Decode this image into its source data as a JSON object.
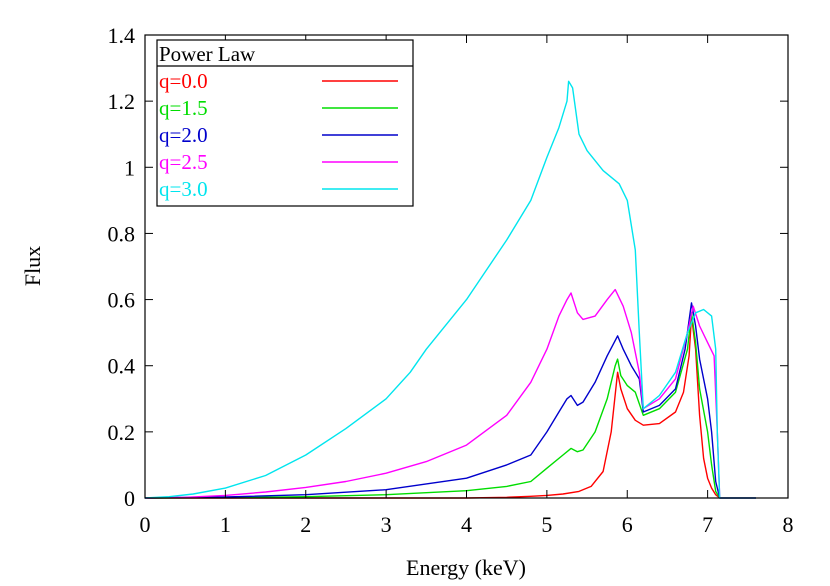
{
  "chart_data": {
    "type": "line",
    "title": "",
    "xlabel": "Energy (keV)",
    "ylabel": "Flux",
    "xlim": [
      0,
      8
    ],
    "ylim": [
      0,
      1.4
    ],
    "xticks": [
      "0",
      "1",
      "2",
      "3",
      "4",
      "5",
      "6",
      "7",
      "8"
    ],
    "yticks": [
      "0",
      "0.2",
      "0.4",
      "0.6",
      "0.8",
      "1",
      "1.2",
      "1.4"
    ],
    "grid": false,
    "legend": {
      "title": "Power Law",
      "position": "top-left"
    },
    "series": [
      {
        "name": "q=0.0",
        "color": "#ff0000",
        "points": [
          [
            0,
            0
          ],
          [
            4.0,
            0
          ],
          [
            4.5,
            0.002
          ],
          [
            4.8,
            0.005
          ],
          [
            5.0,
            0.008
          ],
          [
            5.2,
            0.012
          ],
          [
            5.4,
            0.02
          ],
          [
            5.55,
            0.035
          ],
          [
            5.7,
            0.08
          ],
          [
            5.8,
            0.2
          ],
          [
            5.88,
            0.38
          ],
          [
            5.92,
            0.33
          ],
          [
            6.0,
            0.27
          ],
          [
            6.1,
            0.235
          ],
          [
            6.2,
            0.22
          ],
          [
            6.4,
            0.225
          ],
          [
            6.6,
            0.26
          ],
          [
            6.7,
            0.32
          ],
          [
            6.77,
            0.43
          ],
          [
            6.8,
            0.55
          ],
          [
            6.85,
            0.45
          ],
          [
            6.9,
            0.25
          ],
          [
            6.95,
            0.12
          ],
          [
            7.0,
            0.06
          ],
          [
            7.05,
            0.03
          ],
          [
            7.1,
            0.01
          ],
          [
            7.15,
            0
          ],
          [
            7.6,
            0
          ]
        ]
      },
      {
        "name": "q=1.5",
        "color": "#00dd00",
        "points": [
          [
            0,
            0
          ],
          [
            1.0,
            0.001
          ],
          [
            2.0,
            0.004
          ],
          [
            3.0,
            0.01
          ],
          [
            4.0,
            0.022
          ],
          [
            4.5,
            0.035
          ],
          [
            4.8,
            0.05
          ],
          [
            5.0,
            0.09
          ],
          [
            5.2,
            0.13
          ],
          [
            5.3,
            0.15
          ],
          [
            5.38,
            0.14
          ],
          [
            5.45,
            0.145
          ],
          [
            5.6,
            0.2
          ],
          [
            5.75,
            0.3
          ],
          [
            5.85,
            0.4
          ],
          [
            5.88,
            0.42
          ],
          [
            5.92,
            0.37
          ],
          [
            6.0,
            0.34
          ],
          [
            6.1,
            0.32
          ],
          [
            6.2,
            0.25
          ],
          [
            6.4,
            0.27
          ],
          [
            6.6,
            0.32
          ],
          [
            6.75,
            0.45
          ],
          [
            6.8,
            0.56
          ],
          [
            6.85,
            0.47
          ],
          [
            6.9,
            0.33
          ],
          [
            7.0,
            0.2
          ],
          [
            7.05,
            0.1
          ],
          [
            7.1,
            0.02
          ],
          [
            7.15,
            0
          ],
          [
            7.6,
            0
          ]
        ]
      },
      {
        "name": "q=2.0",
        "color": "#0000cc",
        "points": [
          [
            0,
            0
          ],
          [
            1.0,
            0.003
          ],
          [
            2.0,
            0.01
          ],
          [
            3.0,
            0.025
          ],
          [
            4.0,
            0.06
          ],
          [
            4.5,
            0.1
          ],
          [
            4.8,
            0.13
          ],
          [
            5.0,
            0.2
          ],
          [
            5.15,
            0.26
          ],
          [
            5.25,
            0.3
          ],
          [
            5.3,
            0.31
          ],
          [
            5.38,
            0.28
          ],
          [
            5.45,
            0.29
          ],
          [
            5.6,
            0.35
          ],
          [
            5.75,
            0.43
          ],
          [
            5.88,
            0.49
          ],
          [
            5.95,
            0.45
          ],
          [
            6.05,
            0.4
          ],
          [
            6.15,
            0.36
          ],
          [
            6.2,
            0.26
          ],
          [
            6.4,
            0.28
          ],
          [
            6.6,
            0.33
          ],
          [
            6.72,
            0.45
          ],
          [
            6.8,
            0.59
          ],
          [
            6.85,
            0.52
          ],
          [
            6.9,
            0.42
          ],
          [
            7.0,
            0.3
          ],
          [
            7.05,
            0.2
          ],
          [
            7.1,
            0.05
          ],
          [
            7.15,
            0
          ],
          [
            7.6,
            0
          ]
        ]
      },
      {
        "name": "q=2.5",
        "color": "#ff00ff",
        "points": [
          [
            0,
            0
          ],
          [
            0.5,
            0.002
          ],
          [
            1.0,
            0.008
          ],
          [
            1.5,
            0.018
          ],
          [
            2.0,
            0.032
          ],
          [
            2.5,
            0.05
          ],
          [
            3.0,
            0.075
          ],
          [
            3.5,
            0.11
          ],
          [
            4.0,
            0.16
          ],
          [
            4.5,
            0.25
          ],
          [
            4.8,
            0.35
          ],
          [
            5.0,
            0.45
          ],
          [
            5.15,
            0.55
          ],
          [
            5.25,
            0.6
          ],
          [
            5.3,
            0.62
          ],
          [
            5.38,
            0.56
          ],
          [
            5.45,
            0.54
          ],
          [
            5.6,
            0.55
          ],
          [
            5.75,
            0.6
          ],
          [
            5.85,
            0.63
          ],
          [
            5.95,
            0.58
          ],
          [
            6.05,
            0.5
          ],
          [
            6.15,
            0.38
          ],
          [
            6.2,
            0.27
          ],
          [
            6.4,
            0.3
          ],
          [
            6.6,
            0.36
          ],
          [
            6.75,
            0.5
          ],
          [
            6.82,
            0.58
          ],
          [
            6.9,
            0.52
          ],
          [
            7.0,
            0.47
          ],
          [
            7.08,
            0.43
          ],
          [
            7.12,
            0.2
          ],
          [
            7.15,
            0
          ],
          [
            7.6,
            0
          ]
        ]
      },
      {
        "name": "q=3.0",
        "color": "#00e5ee",
        "points": [
          [
            0,
            0
          ],
          [
            0.3,
            0.004
          ],
          [
            0.6,
            0.012
          ],
          [
            1.0,
            0.03
          ],
          [
            1.5,
            0.068
          ],
          [
            2.0,
            0.13
          ],
          [
            2.5,
            0.21
          ],
          [
            3.0,
            0.3
          ],
          [
            3.3,
            0.38
          ],
          [
            3.5,
            0.45
          ],
          [
            4.0,
            0.6
          ],
          [
            4.5,
            0.78
          ],
          [
            4.8,
            0.9
          ],
          [
            5.0,
            1.03
          ],
          [
            5.15,
            1.12
          ],
          [
            5.25,
            1.2
          ],
          [
            5.27,
            1.26
          ],
          [
            5.32,
            1.24
          ],
          [
            5.4,
            1.1
          ],
          [
            5.5,
            1.05
          ],
          [
            5.7,
            0.99
          ],
          [
            5.9,
            0.95
          ],
          [
            6.0,
            0.9
          ],
          [
            6.1,
            0.75
          ],
          [
            6.15,
            0.5
          ],
          [
            6.2,
            0.27
          ],
          [
            6.4,
            0.31
          ],
          [
            6.6,
            0.38
          ],
          [
            6.75,
            0.5
          ],
          [
            6.85,
            0.56
          ],
          [
            6.95,
            0.57
          ],
          [
            7.05,
            0.55
          ],
          [
            7.1,
            0.45
          ],
          [
            7.12,
            0.2
          ],
          [
            7.15,
            0
          ],
          [
            7.6,
            0
          ]
        ]
      }
    ]
  }
}
